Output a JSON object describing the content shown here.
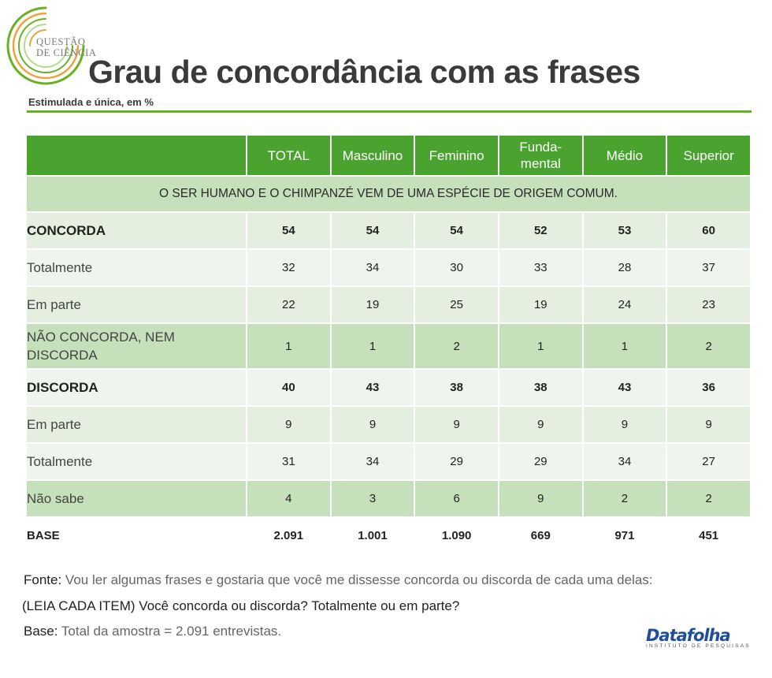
{
  "logo": {
    "line1": "QUESTÃO",
    "line2": "DE CIÊNCIA"
  },
  "title": "Grau de concordância com as frases",
  "subtitle": "Estimulada e única, em %",
  "table": {
    "columns": [
      "",
      "TOTAL",
      "Masculino",
      "Feminino",
      "Funda-\nmental",
      "Médio",
      "Superior"
    ],
    "section": "O SER HUMANO E O CHIMPANZÉ VEM DE UMA ESPÉCIE DE ORIGEM COMUM.",
    "rows": [
      {
        "label": "CONCORDA",
        "values": [
          "54",
          "54",
          "54",
          "52",
          "53",
          "60"
        ]
      },
      {
        "label": "Totalmente",
        "values": [
          "32",
          "34",
          "30",
          "33",
          "28",
          "37"
        ]
      },
      {
        "label": "Em parte",
        "values": [
          "22",
          "19",
          "25",
          "19",
          "24",
          "23"
        ]
      },
      {
        "label": "NÃO CONCORDA, NEM DISCORDA",
        "values": [
          "1",
          "1",
          "2",
          "1",
          "1",
          "2"
        ]
      },
      {
        "label": "DISCORDA",
        "values": [
          "40",
          "43",
          "38",
          "38",
          "43",
          "36"
        ]
      },
      {
        "label": "Em parte",
        "values": [
          "9",
          "9",
          "9",
          "9",
          "9",
          "9"
        ]
      },
      {
        "label": "Totalmente",
        "values": [
          "31",
          "34",
          "29",
          "29",
          "34",
          "27"
        ]
      },
      {
        "label": "Não sabe",
        "values": [
          "4",
          "3",
          "6",
          "9",
          "2",
          "2"
        ]
      },
      {
        "label": "BASE",
        "values": [
          "2.091",
          "1.001",
          "1.090",
          "669",
          "971",
          "451"
        ]
      }
    ]
  },
  "chart_data": {
    "type": "table",
    "title": "Grau de concordância com as frases",
    "subtitle": "Estimulada e única, em %",
    "columns": [
      "TOTAL",
      "Masculino",
      "Feminino",
      "Fundamental",
      "Médio",
      "Superior"
    ],
    "section": "O SER HUMANO E O CHIMPANZÉ VEM DE UMA ESPÉCIE DE ORIGEM COMUM.",
    "rows": [
      {
        "label": "CONCORDA",
        "values": [
          54,
          54,
          54,
          52,
          53,
          60
        ]
      },
      {
        "label": "Totalmente",
        "values": [
          32,
          34,
          30,
          33,
          28,
          37
        ]
      },
      {
        "label": "Em parte",
        "values": [
          22,
          19,
          25,
          19,
          24,
          23
        ]
      },
      {
        "label": "NÃO CONCORDA, NEM DISCORDA",
        "values": [
          1,
          1,
          2,
          1,
          1,
          2
        ]
      },
      {
        "label": "DISCORDA",
        "values": [
          40,
          43,
          38,
          38,
          43,
          36
        ]
      },
      {
        "label": "Em parte",
        "values": [
          9,
          9,
          9,
          9,
          9,
          9
        ]
      },
      {
        "label": "Totalmente",
        "values": [
          31,
          34,
          29,
          29,
          34,
          27
        ]
      },
      {
        "label": "Não sabe",
        "values": [
          4,
          3,
          6,
          9,
          2,
          2
        ]
      },
      {
        "label": "BASE",
        "values": [
          2091,
          1001,
          1090,
          669,
          971,
          451
        ]
      }
    ]
  },
  "footer": {
    "fonte_label": "Fonte:",
    "fonte_text": " Vou ler algumas frases e gostaria que você me dissesse concorda ou discorda de cada uma delas:",
    "line2": "(LEIA CADA ITEM) Você concorda ou discorda? Totalmente ou em parte?",
    "base_label": "Base:",
    "base_text": " Total da amostra = 2.091 entrevistas."
  },
  "brand": {
    "name": "Datafolha",
    "sub": "INSTITUTO DE PESQUISAS"
  },
  "colors": {
    "accent_green": "#4aa32f",
    "rule_green": "#6ab023",
    "brand_blue": "#1f4e9c"
  }
}
